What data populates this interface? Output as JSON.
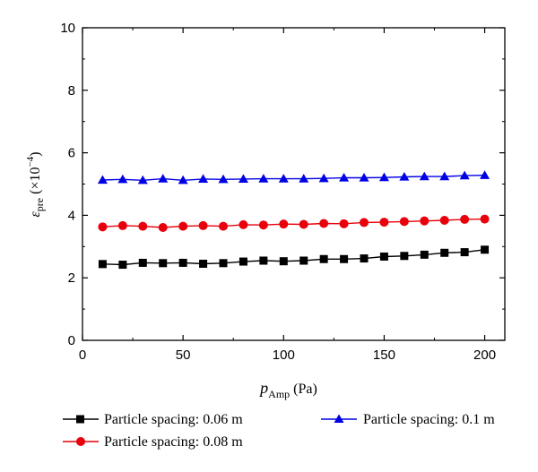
{
  "chart_data": {
    "type": "line",
    "title": "",
    "xlabel": {
      "main": "p",
      "sub": "Amp",
      "unit": " (Pa)"
    },
    "ylabel": {
      "main": "ε",
      "sub": "pre",
      "unit_pre": " (×10",
      "sup": "−4",
      "unit_post": ")"
    },
    "xlim": [
      0,
      210
    ],
    "ylim": [
      0,
      10
    ],
    "xticks": [
      0,
      50,
      100,
      150,
      200
    ],
    "yticks": [
      0,
      2,
      4,
      6,
      8,
      10
    ],
    "grid": false,
    "legend": "bottom",
    "x": [
      10,
      20,
      30,
      40,
      50,
      60,
      70,
      80,
      90,
      100,
      110,
      120,
      130,
      140,
      150,
      160,
      170,
      180,
      190,
      200
    ],
    "series": [
      {
        "name": "Particle spacing: 0.06 m",
        "color": "#000000",
        "marker": "square",
        "values": [
          2.44,
          2.42,
          2.48,
          2.47,
          2.48,
          2.45,
          2.47,
          2.52,
          2.55,
          2.53,
          2.55,
          2.6,
          2.6,
          2.62,
          2.68,
          2.7,
          2.74,
          2.8,
          2.82,
          2.9
        ]
      },
      {
        "name": "Particle spacing: 0.08 m",
        "color": "#e8000b",
        "marker": "circle",
        "values": [
          3.63,
          3.67,
          3.65,
          3.61,
          3.65,
          3.67,
          3.65,
          3.7,
          3.69,
          3.72,
          3.71,
          3.74,
          3.73,
          3.77,
          3.78,
          3.8,
          3.82,
          3.84,
          3.87,
          3.88
        ]
      },
      {
        "name": "Particle spacing: 0.1 m",
        "color": "#0000e6",
        "marker": "triangle",
        "values": [
          5.13,
          5.15,
          5.12,
          5.17,
          5.12,
          5.16,
          5.15,
          5.16,
          5.17,
          5.17,
          5.17,
          5.18,
          5.2,
          5.2,
          5.21,
          5.23,
          5.24,
          5.24,
          5.27,
          5.28
        ]
      }
    ]
  }
}
